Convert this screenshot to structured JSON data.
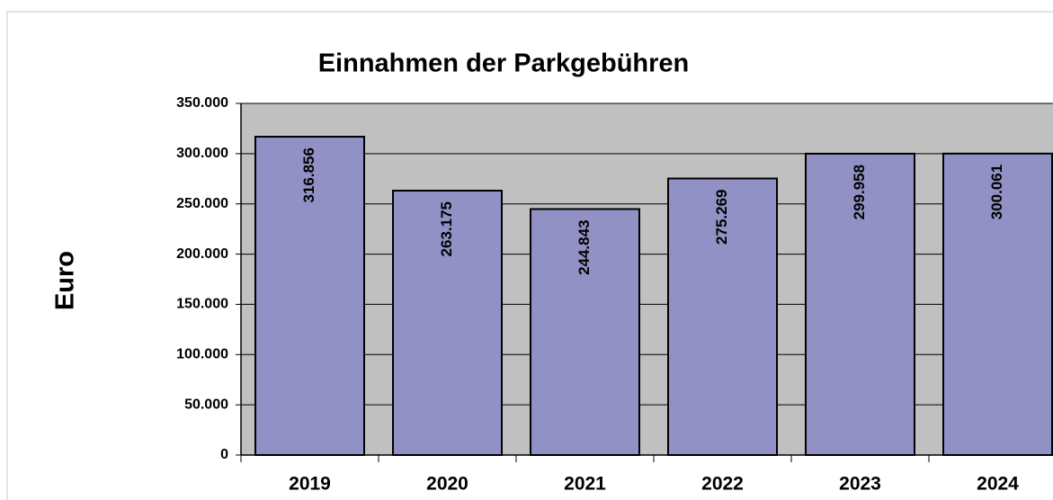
{
  "chart_data": {
    "type": "bar",
    "title": "Einnahmen der Parkgebühren",
    "y_label": "Euro",
    "categories": [
      "2019",
      "2020",
      "2021",
      "2022",
      "2023",
      "2024"
    ],
    "values": [
      316856,
      263175,
      244843,
      275269,
      299958,
      300061
    ],
    "value_labels": [
      "316.856",
      "263.175",
      "244.843",
      "275.269",
      "299.958",
      "300.061"
    ],
    "color": "#9291c6",
    "plot_background": "#c0c0c0",
    "ylim": [
      0,
      350000
    ],
    "yticks": [
      0,
      {
        "value": 50000,
        "label": "50.000"
      },
      {
        "value": 100000,
        "label": "100.000"
      },
      {
        "value": 150000,
        "label": "150.000"
      },
      {
        "value": 200000,
        "label": "200.000"
      },
      {
        "value": 250000,
        "label": "250.000"
      },
      {
        "value": 300000,
        "label": "300.000"
      },
      {
        "value": 350000,
        "label": "350.000"
      }
    ],
    "grid": true
  }
}
